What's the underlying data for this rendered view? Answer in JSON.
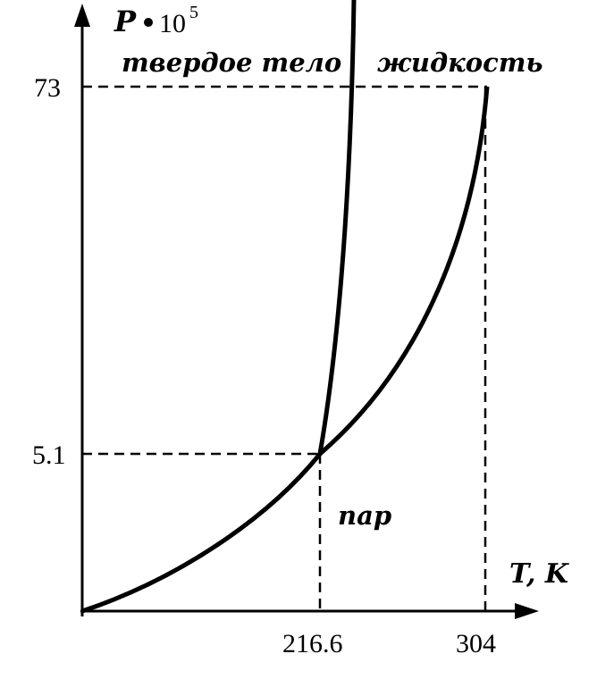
{
  "diagram": {
    "y_axis": {
      "symbol": "P",
      "multiplier_base": "10",
      "multiplier_exp": "5"
    },
    "x_axis": {
      "label": "T, K"
    },
    "regions": {
      "solid": "твердое тело",
      "liquid": "жидкость",
      "vapor": "пар"
    },
    "ticks": {
      "triple_pressure": "5.1",
      "critical_pressure": "73",
      "triple_temperature": "216.6",
      "critical_temperature": "304"
    }
  },
  "colors": {
    "ink": "#000000",
    "background": "#ffffff"
  }
}
